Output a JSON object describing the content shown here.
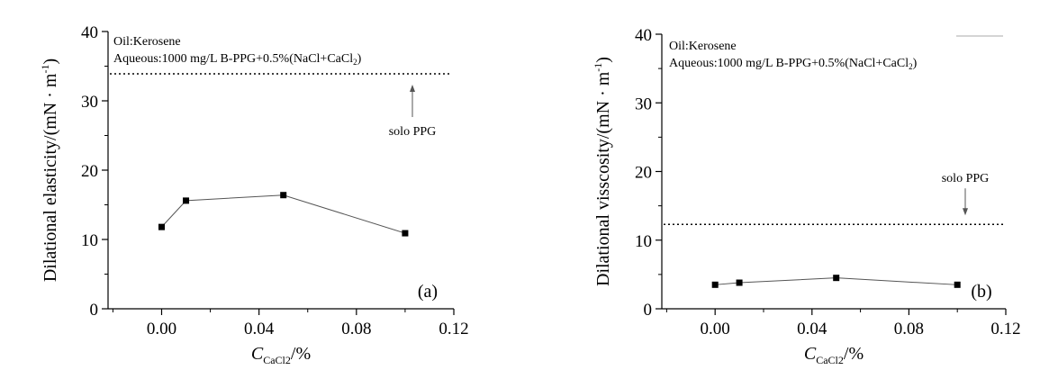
{
  "chart_data": [
    {
      "type": "line",
      "panel_label": "(a)",
      "ylabel": "Dilational elasticity/(mN · m",
      "ylabel_sup": "-1",
      "ylabel_close": ")",
      "xlabel_prefix": "C",
      "xlabel_sub": "CaCl2",
      "xlabel_suffix": "/%",
      "xlim": [
        -0.022,
        0.12
      ],
      "ylim": [
        0,
        40
      ],
      "x_ticks": [
        0.0,
        0.04,
        0.08,
        0.12
      ],
      "x_tick_labels": [
        "0.00",
        "0.04",
        "0.08",
        "0.12"
      ],
      "y_ticks": [
        0,
        10,
        20,
        30,
        40
      ],
      "y_tick_labels": [
        "0",
        "10",
        "20",
        "30",
        "40"
      ],
      "x": [
        0.0,
        0.01,
        0.05,
        0.1
      ],
      "values": [
        11.8,
        15.6,
        16.4,
        10.9
      ],
      "reference_line": {
        "y": 33.9,
        "label": "solo PPG",
        "arrow": "up"
      },
      "annotation": {
        "line1": "Oil:Kerosene",
        "line2": "Aqueous:1000 mg/L B-PPG+0.5%(NaCl+CaCl",
        "line2_sub": "2",
        "line2_close": ")"
      },
      "grid": false
    },
    {
      "type": "line",
      "panel_label": "(b)",
      "ylabel": "Dilational visscosity/(mN · m",
      "ylabel_sup": "-1",
      "ylabel_close": ")",
      "xlabel_prefix": "C",
      "xlabel_sub": "CaCl2",
      "xlabel_suffix": "/%",
      "xlim": [
        -0.022,
        0.12
      ],
      "ylim": [
        0,
        40
      ],
      "x_ticks": [
        0.0,
        0.04,
        0.08,
        0.12
      ],
      "x_tick_labels": [
        "0.00",
        "0.04",
        "0.08",
        "0.12"
      ],
      "y_ticks": [
        0,
        10,
        20,
        30,
        40
      ],
      "y_tick_labels": [
        "0",
        "10",
        "20",
        "30",
        "40"
      ],
      "x": [
        0.0,
        0.01,
        0.05,
        0.1
      ],
      "values": [
        3.5,
        3.8,
        4.5,
        3.5
      ],
      "reference_line": {
        "y": 12.3,
        "label": "solo PPG",
        "arrow": "down"
      },
      "annotation": {
        "line1": "Oil:Kerosene",
        "line2": "Aqueous:1000 mg/L B-PPG+0.5%(NaCl+CaCl",
        "line2_sub": "2",
        "line2_close": ")"
      },
      "grid": false
    }
  ]
}
